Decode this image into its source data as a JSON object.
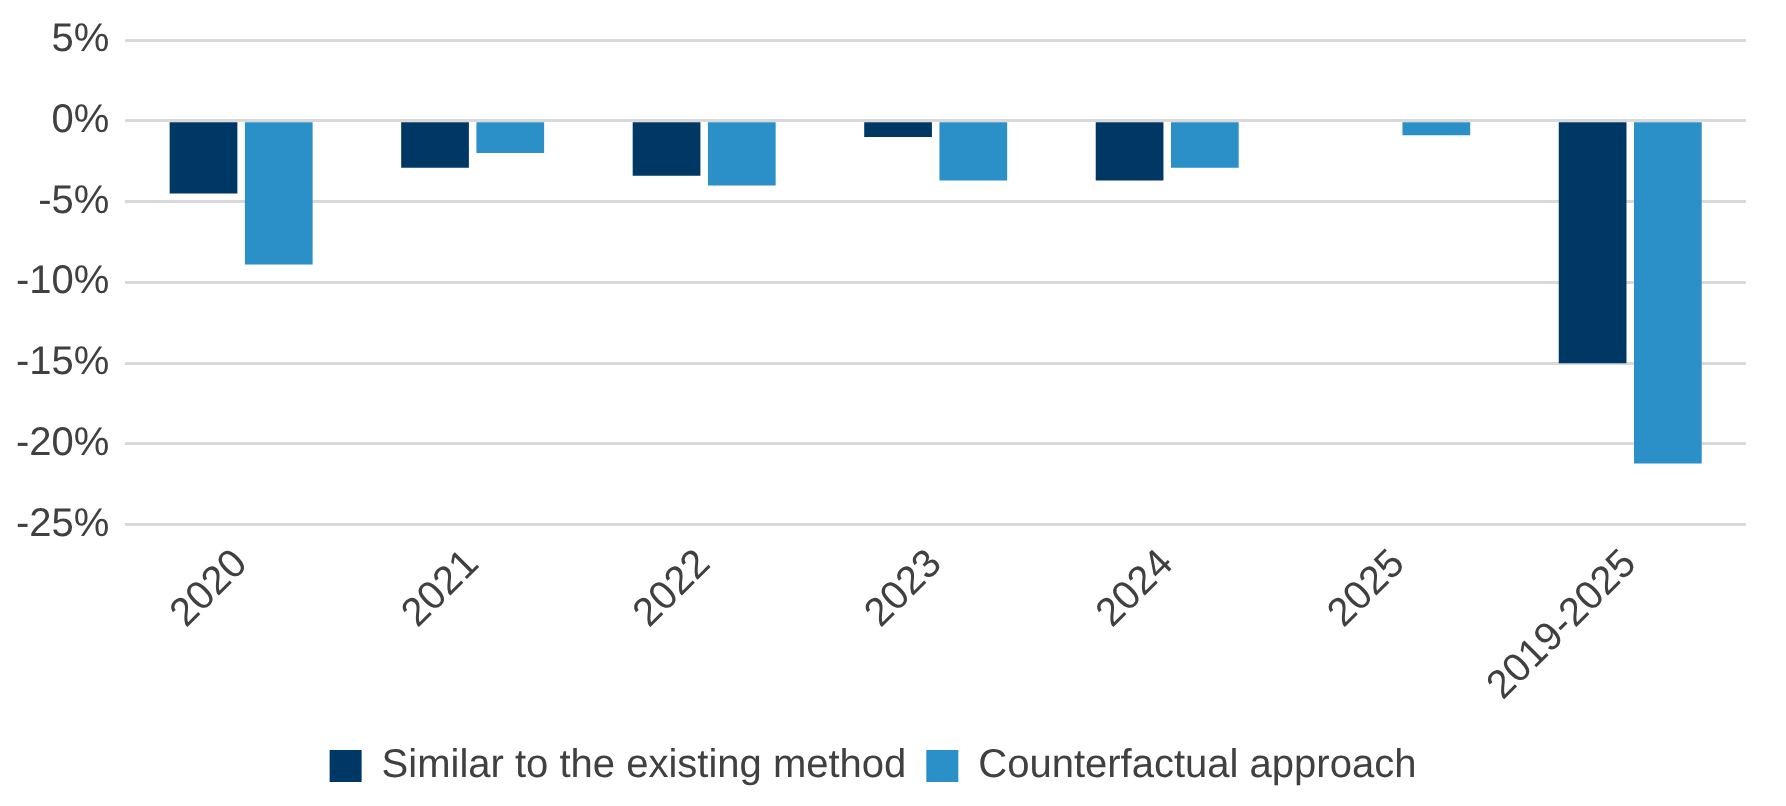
{
  "chart_data": {
    "type": "bar",
    "categories": [
      "2020",
      "2021",
      "2022",
      "2023",
      "2024",
      "2025",
      "2019-2025"
    ],
    "series": [
      {
        "name": "Similar to the existing method",
        "color": "#003865",
        "values": [
          -4.5,
          -2.9,
          -3.4,
          -1.0,
          -3.7,
          null,
          -15.0
        ]
      },
      {
        "name": "Counterfactual approach",
        "color": "#2b8fc8",
        "values": [
          -8.9,
          -2.0,
          -4.0,
          -3.7,
          -2.9,
          -0.9,
          -21.2
        ]
      }
    ],
    "ylim": [
      -25,
      5
    ],
    "yticks": [
      {
        "value": 5,
        "label": "5%"
      },
      {
        "value": 0,
        "label": "0%"
      },
      {
        "value": -5,
        "label": "-5%"
      },
      {
        "value": -10,
        "label": "-10%"
      },
      {
        "value": -15,
        "label": "-15%"
      },
      {
        "value": -20,
        "label": "-20%"
      },
      {
        "value": -25,
        "label": "-25%"
      }
    ],
    "grid": "y",
    "legend": "bottom"
  }
}
